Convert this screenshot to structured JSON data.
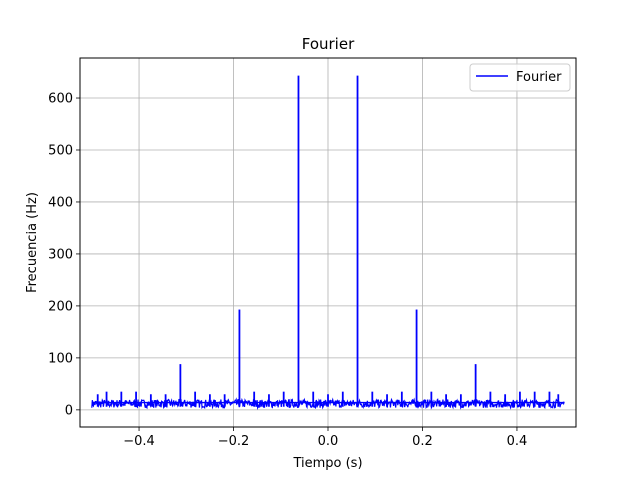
{
  "chart_data": {
    "type": "line",
    "title": "Fourier",
    "xlabel": "Tiempo (s)",
    "ylabel": "Frecuencia (Hz)",
    "xlim": [
      -0.525,
      0.525
    ],
    "ylim": [
      -33,
      677
    ],
    "grid": true,
    "legend_position": "top-right",
    "x_ticks": [
      -0.4,
      -0.2,
      0.0,
      0.2,
      0.4
    ],
    "x_tick_labels": [
      "−0.4",
      "−0.2",
      "0.0",
      "0.2",
      "0.4"
    ],
    "y_ticks": [
      0,
      100,
      200,
      300,
      400,
      500,
      600
    ],
    "y_tick_labels": [
      "0",
      "100",
      "200",
      "300",
      "400",
      "500",
      "600"
    ],
    "series": [
      {
        "name": "Fourier",
        "color": "#0000ff",
        "baseline": 12,
        "x_range": [
          -0.5,
          0.5
        ],
        "peaks": [
          {
            "x": -0.0625,
            "y": 643
          },
          {
            "x": 0.0625,
            "y": 643
          },
          {
            "x": -0.1875,
            "y": 193
          },
          {
            "x": 0.1875,
            "y": 193
          },
          {
            "x": -0.3125,
            "y": 88
          },
          {
            "x": 0.3125,
            "y": 88
          },
          {
            "x": -0.4875,
            "y": 30
          },
          {
            "x": -0.4688,
            "y": 35
          },
          {
            "x": -0.4375,
            "y": 35
          },
          {
            "x": -0.4063,
            "y": 35
          },
          {
            "x": -0.375,
            "y": 30
          },
          {
            "x": -0.3438,
            "y": 30
          },
          {
            "x": -0.2813,
            "y": 35
          },
          {
            "x": -0.25,
            "y": 30
          },
          {
            "x": -0.2188,
            "y": 30
          },
          {
            "x": -0.1563,
            "y": 35
          },
          {
            "x": -0.125,
            "y": 30
          },
          {
            "x": -0.0938,
            "y": 35
          },
          {
            "x": -0.0313,
            "y": 35
          },
          {
            "x": 0.0,
            "y": 30
          },
          {
            "x": 0.0313,
            "y": 35
          },
          {
            "x": 0.0938,
            "y": 35
          },
          {
            "x": 0.125,
            "y": 30
          },
          {
            "x": 0.1563,
            "y": 35
          },
          {
            "x": 0.2188,
            "y": 35
          },
          {
            "x": 0.25,
            "y": 30
          },
          {
            "x": 0.2813,
            "y": 30
          },
          {
            "x": 0.3438,
            "y": 35
          },
          {
            "x": 0.375,
            "y": 30
          },
          {
            "x": 0.4063,
            "y": 35
          },
          {
            "x": 0.4375,
            "y": 35
          },
          {
            "x": 0.4688,
            "y": 35
          },
          {
            "x": 0.4875,
            "y": 30
          }
        ]
      }
    ]
  }
}
